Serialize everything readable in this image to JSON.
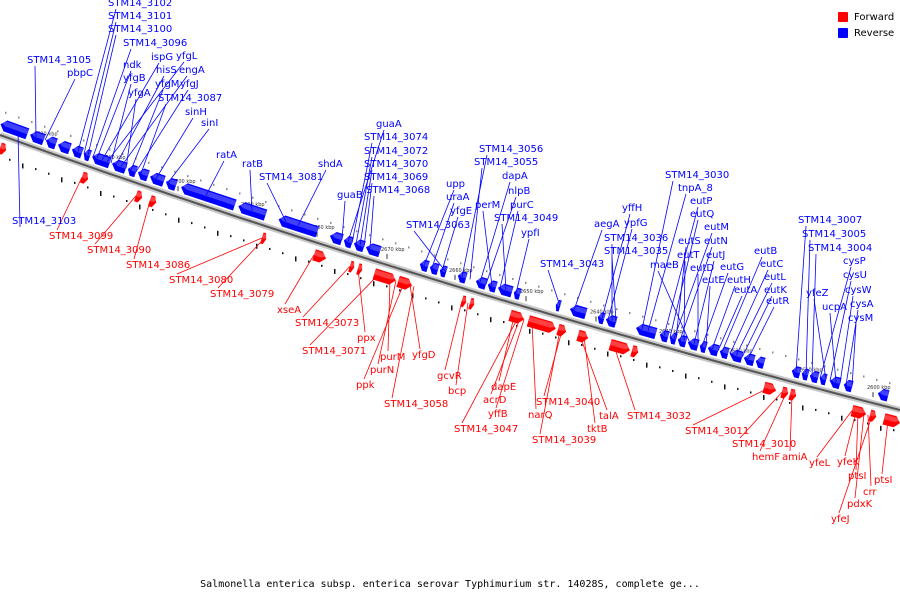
{
  "legend": {
    "forward_label": "Forward",
    "reverse_label": "Reverse",
    "forward_color": "#ff0000",
    "reverse_color": "#0000ff"
  },
  "caption": "Salmonella enterica subsp. enterica serovar Typhimurium str. 14028S, complete ge...",
  "ticks": [
    "2720 kbp",
    "2710 kbp",
    "2700 kbp",
    "2690 kbp",
    "2680 kbp",
    "2670 kbp",
    "2660 kbp",
    "2650 kbp",
    "2640 kbp",
    "2630 kbp",
    "2620 kbp",
    "2610 kbp",
    "2600 kbp"
  ],
  "reverse_genes": [
    "STM14_3105",
    "pbpC",
    "STM14_3102",
    "STM14_3101",
    "STM14_3100",
    "STM14_3096",
    "ndk",
    "ispG",
    "yfgL",
    "yfgB",
    "hisS",
    "engA",
    "yfgA",
    "yfgM",
    "yfgJ",
    "STM14_3087",
    "sinH",
    "sinI",
    "ratA",
    "ratB",
    "STM14_3081",
    "shdA",
    "guaA",
    "STM14_3074",
    "STM14_3072",
    "STM14_3070",
    "STM14_3069",
    "STM14_3068",
    "guaB",
    "upp",
    "uraA",
    "yfgE",
    "STM14_3063",
    "STM14_3056",
    "STM14_3055",
    "dapA",
    "nlpB",
    "perM",
    "purC",
    "STM14_3049",
    "ypfI",
    "STM14_3043",
    "aegA",
    "yffH",
    "ypfG",
    "STM14_3036",
    "STM14_3035",
    "STM14_3030",
    "tnpA_8",
    "eutP",
    "eutQ",
    "eutM",
    "eutS",
    "eutN",
    "eutT",
    "maeB",
    "eutJ",
    "eutD",
    "eutG",
    "eutE",
    "eutH",
    "eutA",
    "eutB",
    "eutC",
    "eutL",
    "eutK",
    "eutR",
    "STM14_3007",
    "STM14_3005",
    "STM14_3004",
    "cysP",
    "yfeZ",
    "cysU",
    "ucpA",
    "cysW",
    "cysA",
    "cysM",
    "STM14_3103"
  ],
  "forward_genes": [
    "STM14_3099",
    "STM14_3090",
    "STM14_3086",
    "STM14_3080",
    "STM14_3079",
    "xseA",
    "STM14_3073",
    "ppx",
    "STM14_3071",
    "purM",
    "purN",
    "ppk",
    "yfgD",
    "STM14_3058",
    "gcvR",
    "bcp",
    "dapE",
    "acrD",
    "yffB",
    "narQ",
    "STM14_3047",
    "STM14_3040",
    "talA",
    "STM14_3039",
    "tktB",
    "STM14_3032",
    "STM14_3011",
    "STM14_3010",
    "hemF",
    "amiA",
    "yfeL",
    "yfeK",
    "ptsI",
    "pdxK",
    "crr",
    "yfeJ",
    "ptsI"
  ]
}
